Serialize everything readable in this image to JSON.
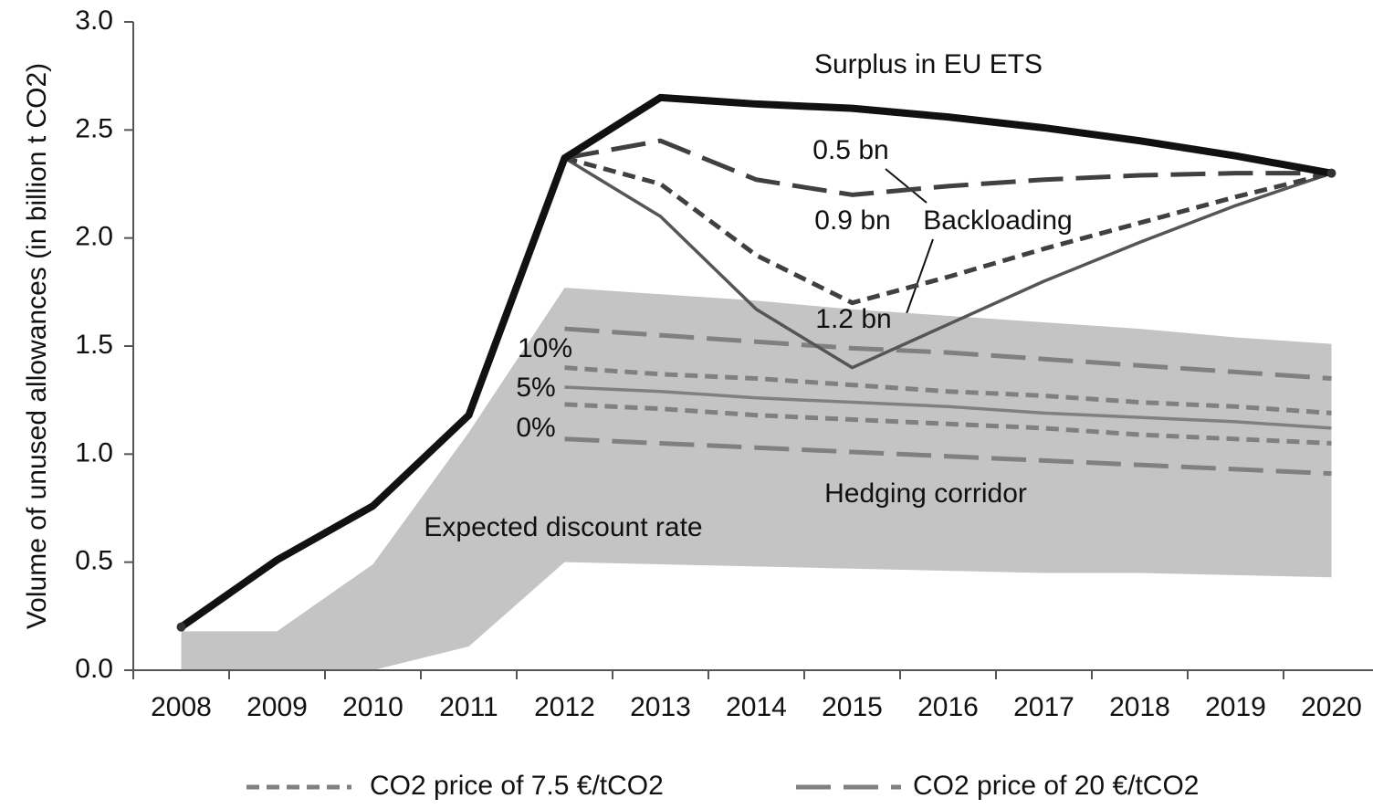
{
  "chart_data": {
    "type": "line",
    "y_label": "Volume of unused allowances (in billion t CO2)",
    "categories": [
      "2008",
      "2009",
      "2010",
      "2011",
      "2012",
      "2013",
      "2014",
      "2015",
      "2016",
      "2017",
      "2018",
      "2019",
      "2020"
    ],
    "ylim": [
      0,
      3
    ],
    "yticks": [
      {
        "value": 0,
        "label": "0.0"
      },
      0.5,
      {
        "value": 1,
        "label": "1.0"
      },
      1.5,
      {
        "value": 2,
        "label": "2.0"
      },
      2.5,
      {
        "value": 3,
        "label": "3.0"
      }
    ],
    "area": {
      "color": "#c4c4c4",
      "upper": [
        0.18,
        0.18,
        0.49,
        1.1,
        1.77,
        1.74,
        1.71,
        1.67,
        1.64,
        1.61,
        1.58,
        1.54,
        1.51
      ],
      "lower": [
        0,
        0,
        0,
        0.11,
        0.5,
        0.49,
        0.48,
        0.47,
        0.46,
        0.45,
        0.45,
        0.44,
        0.43
      ]
    },
    "series": [
      {
        "values": [
          null,
          null,
          null,
          null,
          1.58,
          1.55,
          1.52,
          1.49,
          1.47,
          1.44,
          1.41,
          1.38,
          1.35
        ],
        "color": "#808080",
        "line_style": "long-dash"
      },
      {
        "values": [
          null,
          null,
          null,
          null,
          1.4,
          1.37,
          1.35,
          1.32,
          1.29,
          1.27,
          1.24,
          1.22,
          1.19
        ],
        "color": "#808080",
        "line_style": "dash"
      },
      {
        "values": [
          null,
          null,
          null,
          null,
          1.31,
          1.29,
          1.26,
          1.24,
          1.22,
          1.19,
          1.17,
          1.15,
          1.12
        ],
        "color": "#808080",
        "line_style": "solid"
      },
      {
        "values": [
          null,
          null,
          null,
          null,
          1.23,
          1.21,
          1.18,
          1.16,
          1.14,
          1.12,
          1.09,
          1.07,
          1.05
        ],
        "color": "#808080",
        "line_style": "dash"
      },
      {
        "values": [
          null,
          null,
          null,
          null,
          1.07,
          1.05,
          1.03,
          1.01,
          0.99,
          0.97,
          0.95,
          0.93,
          0.91
        ],
        "color": "#808080",
        "line_style": "long-dash"
      },
      {
        "name": "1.2 bn",
        "values": [
          null,
          null,
          null,
          null,
          2.37,
          2.1,
          1.67,
          1.4,
          1.6,
          1.8,
          1.98,
          2.15,
          2.3
        ],
        "color": "#555555",
        "line_style": "solid"
      },
      {
        "name": "0.9 bn",
        "values": [
          null,
          null,
          null,
          null,
          2.37,
          2.25,
          1.92,
          1.7,
          1.82,
          1.95,
          2.07,
          2.19,
          2.3
        ],
        "color": "#404040",
        "line_style": "dash"
      },
      {
        "name": "0.5 bn",
        "values": [
          null,
          null,
          null,
          null,
          2.37,
          2.45,
          2.27,
          2.2,
          2.24,
          2.27,
          2.29,
          2.3,
          2.3
        ],
        "color": "#404040",
        "line_style": "long-dash"
      },
      {
        "name": "Surplus in EU ETS",
        "values": [
          0.2,
          0.51,
          0.76,
          1.18,
          2.37,
          2.65,
          2.62,
          2.6,
          2.56,
          2.51,
          2.45,
          2.38,
          2.3
        ],
        "color": "#111111",
        "line_style": "bold"
      }
    ],
    "annotations": [
      "Backloading",
      "10%",
      "5%",
      "0%",
      "Expected discount rate",
      "Hedging corridor"
    ],
    "legend": [
      {
        "label": "CO2 price of 7.5 €/tCO2",
        "color": "#808080",
        "line_style": "dash"
      },
      {
        "label": "CO2 price of 20 €/tCO2",
        "color": "#808080",
        "line_style": "long-dash"
      }
    ]
  }
}
